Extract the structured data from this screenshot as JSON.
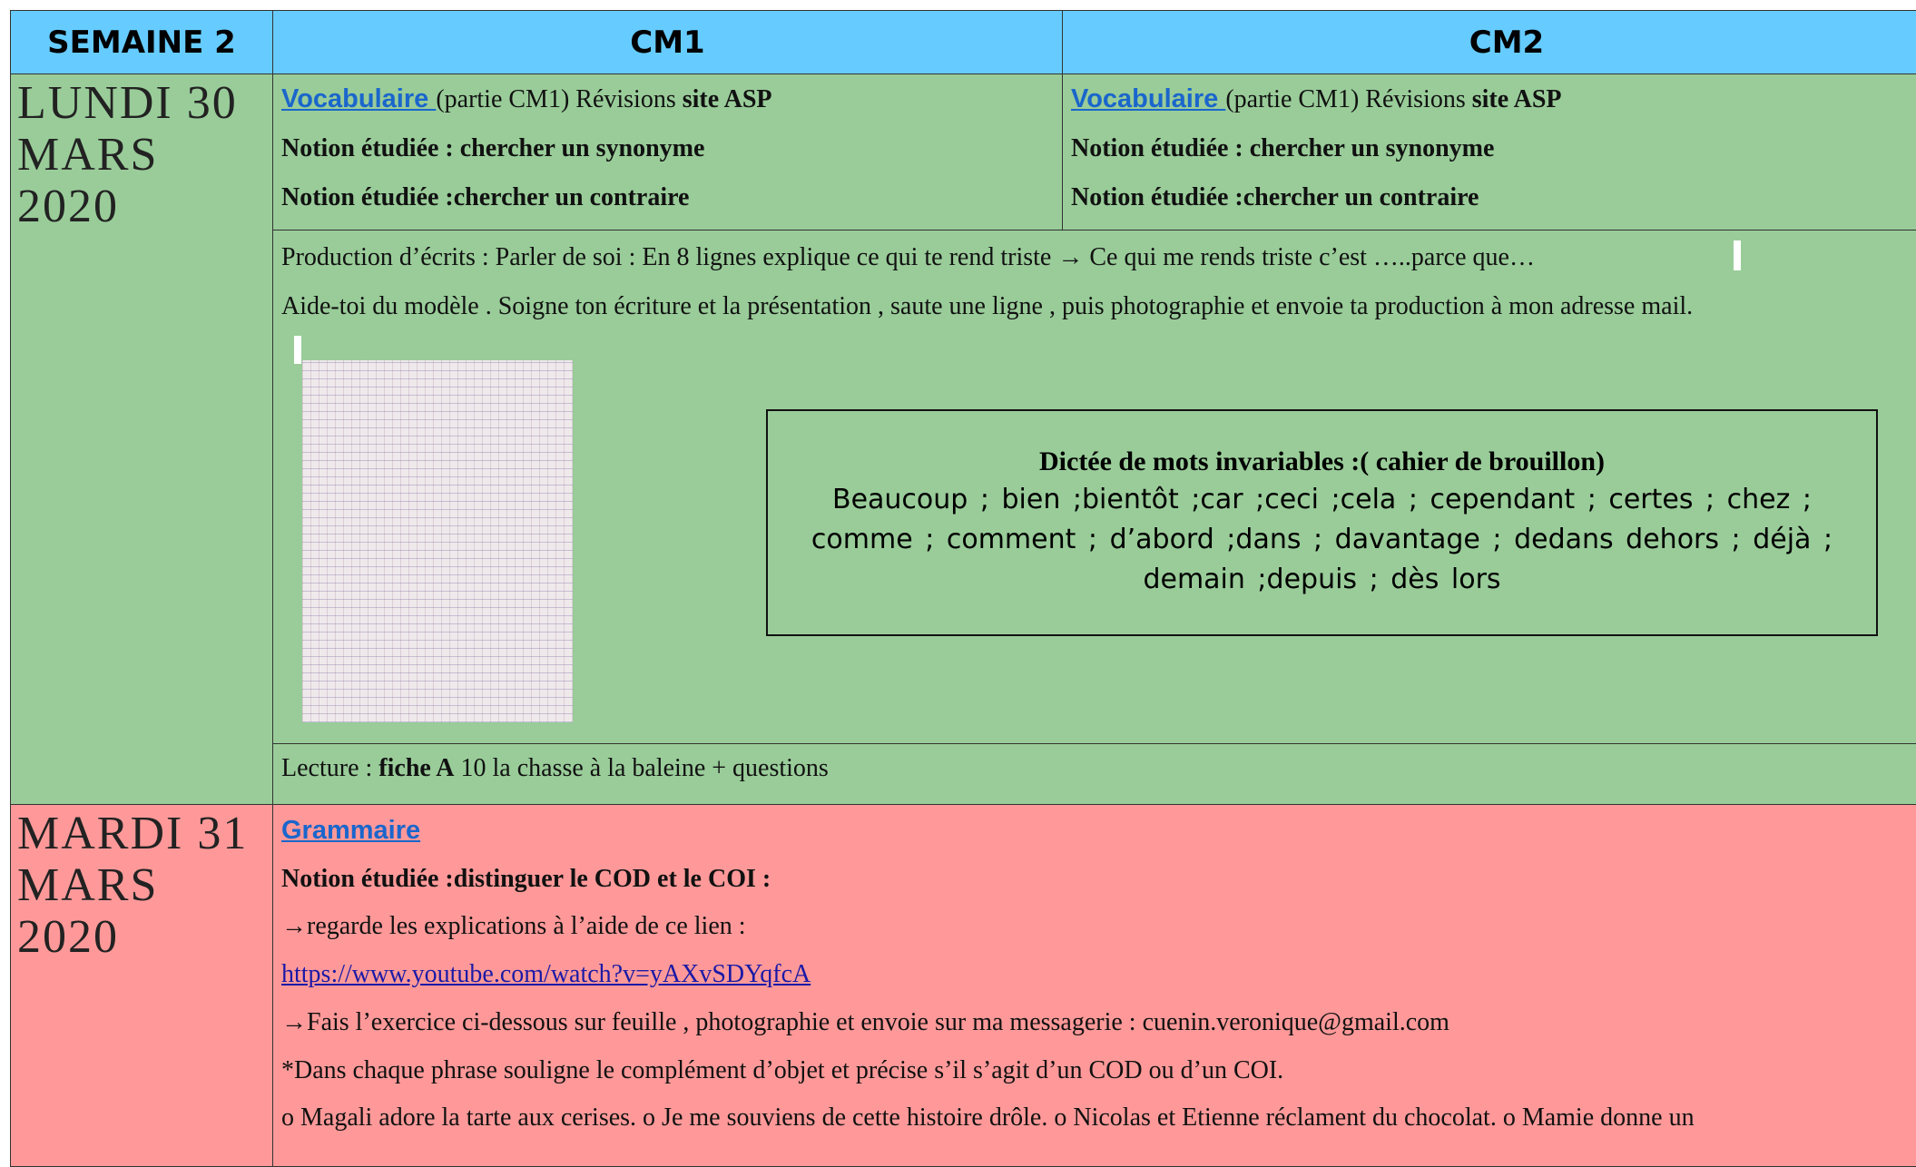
{
  "header": {
    "week": "SEMAINE 2",
    "col1": "CM1",
    "col2": "CM2"
  },
  "monday": {
    "day": "LUNDI 30 MARS 2020",
    "cm1": {
      "link": "Vocabulaire ",
      "text": "(partie  CM1) Révisions  ",
      "bold": "site ASP",
      "notion1": "Notion étudiée : chercher un synonyme",
      "notion2": "Notion étudiée :chercher un contraire"
    },
    "cm2": {
      "link": "Vocabulaire ",
      "text": "(partie  CM1) Révisions  ",
      "bold": "site ASP",
      "notion1": "Notion étudiée : chercher un synonyme",
      "notion2": "Notion étudiée :chercher un contraire"
    },
    "production": {
      "line1": "Production d’écrits : Parler de soi : En 8 lignes explique ce qui te rend triste → Ce qui me rends triste c’est …..parce que…",
      "line2": "Aide-toi du modèle . Soigne ton écriture et la présentation , saute une ligne , puis photographie et envoie ta production à mon adresse mail."
    },
    "dictee": {
      "title": "Dictée de mots invariables  :( cahier de brouillon)",
      "words": "Beaucoup  ; bien ;bientôt ;car ;ceci ;cela ; cependant ; certes ; chez ; comme ; comment ; d’abord ;dans ; davantage ; dedans dehors ; déjà ; demain ;depuis ; dès lors"
    },
    "lecture": {
      "text1": "Lecture : ",
      "bold": "fiche A",
      "text2": " 10  la chasse à la baleine + questions"
    }
  },
  "tuesday": {
    "day": "MARDI 31 MARS 2020",
    "link": "Grammaire",
    "notion": "Notion étudiée :distinguer le COD et le COI :",
    "line1": "→regarde les explications à l’aide de ce lien :",
    "url": "https://www.youtube.com/watch?v=yAXvSDYqfcA",
    "line2": "→Fais l’exercice ci-dessous sur feuille , photographie et envoie sur ma messagerie : cuenin.veronique@gmail.com",
    "line3": "*Dans chaque phrase souligne le complément d’objet et précise s’il s’agit d’un COD ou d’un COI.",
    "line4": "o Magali adore la tarte aux cerises. o Je me souviens de cette histoire drôle. o Nicolas et Etienne réclament du chocolat. o Mamie donne un"
  }
}
